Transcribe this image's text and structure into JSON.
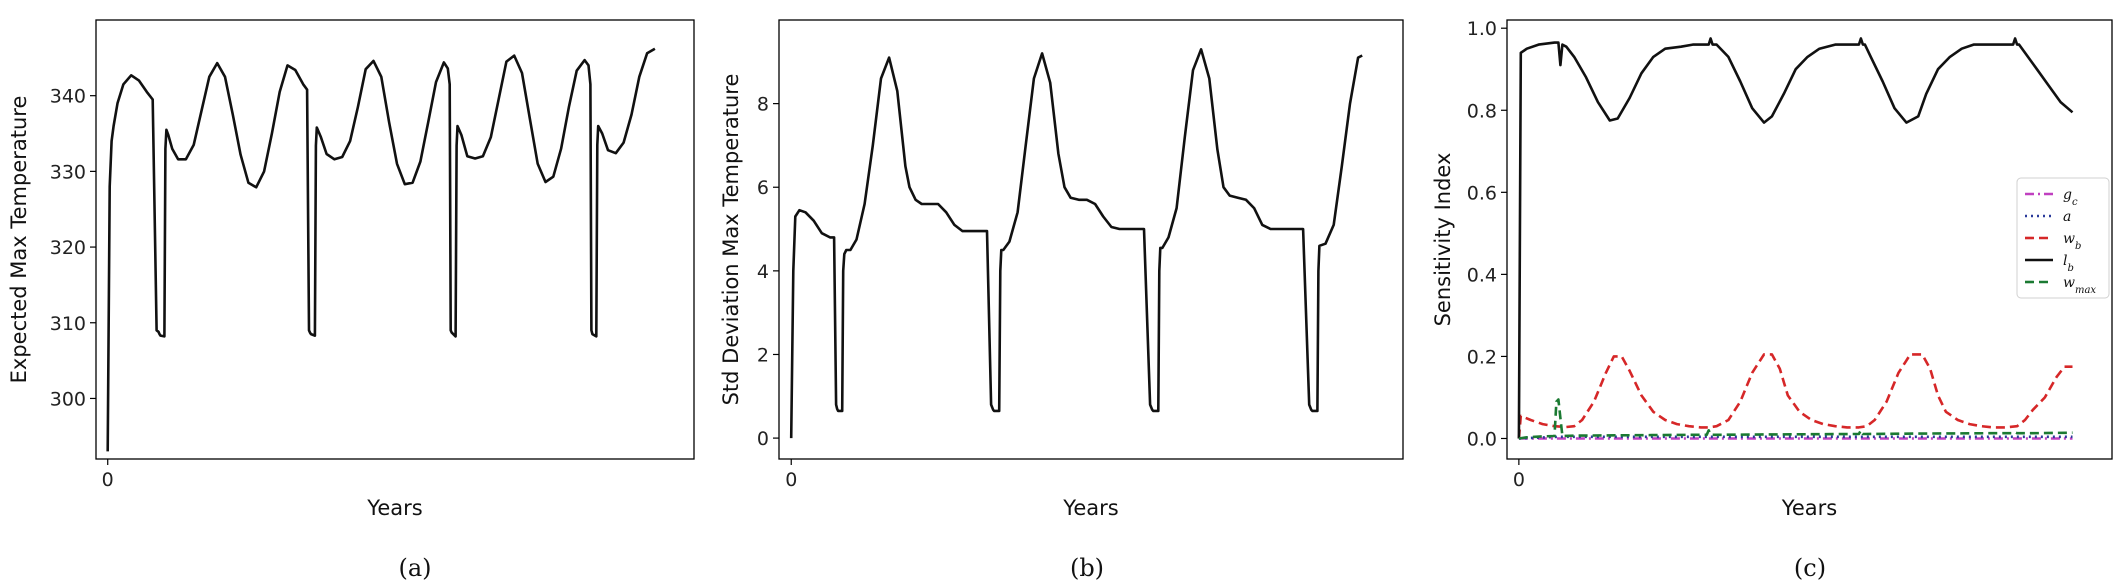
{
  "chart_data": [
    {
      "type": "line",
      "caption": "(a)",
      "xlabel": "Years",
      "ylabel": "Expected Max Temperature",
      "xlim": [
        -6,
        300
      ],
      "ylim": [
        292,
        350
      ],
      "xticks": [
        0
      ],
      "yticks": [
        300,
        310,
        320,
        330,
        340
      ],
      "grid": false,
      "series": [
        {
          "color": "#111111",
          "style": "solid",
          "x": [
            0,
            1,
            2,
            3,
            5,
            8,
            12,
            16,
            20,
            23,
            25,
            26,
            26.5,
            27,
            29,
            29.5,
            30,
            31,
            33,
            36,
            40,
            44,
            48,
            52,
            56,
            60,
            64,
            68,
            72,
            76,
            80,
            84,
            88,
            92,
            96,
            100,
            102,
            103,
            103.5,
            104,
            106,
            106.5,
            107,
            109,
            112,
            116,
            120,
            124,
            128,
            132,
            136,
            140,
            144,
            148,
            152,
            156,
            160,
            164,
            168,
            172,
            174,
            175,
            175.5,
            176,
            178,
            178.5,
            179,
            181,
            184,
            188,
            192,
            196,
            200,
            204,
            208,
            212,
            216,
            220,
            224,
            228,
            232,
            236,
            240,
            244,
            246,
            247,
            247.5,
            248,
            250,
            250.5,
            251,
            253,
            256,
            260,
            264,
            268,
            272,
            276,
            280
          ],
          "y": [
            293,
            328,
            334,
            336,
            339,
            341.5,
            342.7,
            342,
            340.5,
            339.5,
            309,
            308.8,
            308.5,
            308.3,
            308.2,
            333,
            335.5,
            334.8,
            333,
            331.6,
            331.6,
            333.5,
            338,
            342.5,
            344.3,
            342.5,
            337.5,
            332.2,
            328.5,
            327.9,
            330,
            335,
            340.5,
            344.0,
            343.4,
            341.5,
            340.8,
            309.0,
            308.7,
            308.5,
            308.3,
            333.4,
            335.8,
            334.6,
            332.3,
            331.6,
            331.9,
            334.0,
            338.5,
            343.5,
            344.6,
            342.5,
            336.5,
            331.0,
            328.3,
            328.5,
            331.3,
            336.5,
            341.8,
            344.4,
            343.6,
            341.5,
            309.0,
            308.7,
            308.2,
            333.4,
            336.0,
            334.8,
            332.0,
            331.7,
            332.0,
            334.5,
            339.5,
            344.5,
            345.3,
            343.0,
            337.0,
            331.0,
            328.6,
            329.3,
            333.0,
            338.5,
            343.3,
            344.7,
            344.0,
            341.5,
            309.0,
            308.5,
            308.2,
            333.5,
            336.0,
            335.0,
            332.8,
            332.4,
            333.8,
            337.5,
            342.5,
            345.6,
            346.2
          ]
        }
      ]
    },
    {
      "type": "line",
      "caption": "(b)",
      "xlabel": "Years",
      "ylabel": "Std Deviation Max Temperature",
      "xlim": [
        -6,
        300
      ],
      "ylim": [
        -0.5,
        10
      ],
      "xticks": [
        0
      ],
      "yticks": [
        0,
        2,
        4,
        6,
        8
      ],
      "grid": false,
      "series": [
        {
          "color": "#111111",
          "style": "solid",
          "x": [
            0,
            1,
            2,
            4,
            7,
            11,
            15,
            19,
            21,
            22,
            22.5,
            23,
            25,
            25.5,
            26,
            27,
            29,
            32,
            36,
            40,
            44,
            48,
            52,
            56,
            58,
            61,
            64,
            68,
            72,
            76,
            80,
            84,
            88,
            92,
            96,
            98,
            99,
            99.5,
            100,
            102,
            102.5,
            103,
            104,
            107,
            111,
            115,
            119,
            123,
            127,
            131,
            134,
            137,
            141,
            145,
            149,
            153,
            157,
            161,
            165,
            173,
            176,
            177,
            177.5,
            178,
            180,
            180.5,
            181,
            182,
            185,
            189,
            193,
            197,
            201,
            205,
            209,
            212,
            215,
            219,
            223,
            227,
            231,
            235,
            239,
            243,
            251,
            254,
            255,
            255.5,
            256,
            258,
            258.5,
            259,
            262,
            266,
            270,
            274,
            278,
            280
          ],
          "y": [
            0,
            4.0,
            5.3,
            5.45,
            5.4,
            5.2,
            4.9,
            4.8,
            4.8,
            0.8,
            0.7,
            0.65,
            0.65,
            4.0,
            4.4,
            4.5,
            4.5,
            4.75,
            5.6,
            7.0,
            8.6,
            9.1,
            8.3,
            6.5,
            6.0,
            5.7,
            5.6,
            5.6,
            5.6,
            5.4,
            5.1,
            4.95,
            4.95,
            4.95,
            4.95,
            0.8,
            0.68,
            0.65,
            0.65,
            0.65,
            4.0,
            4.5,
            4.5,
            4.7,
            5.4,
            7.0,
            8.6,
            9.2,
            8.5,
            6.8,
            6.0,
            5.75,
            5.7,
            5.7,
            5.6,
            5.3,
            5.05,
            5.0,
            5.0,
            5.0,
            0.8,
            0.68,
            0.65,
            0.65,
            0.65,
            4.0,
            4.55,
            4.55,
            4.8,
            5.5,
            7.2,
            8.8,
            9.3,
            8.6,
            6.9,
            6.0,
            5.8,
            5.75,
            5.7,
            5.5,
            5.1,
            5.0,
            5.0,
            5.0,
            5.0,
            0.8,
            0.68,
            0.65,
            0.65,
            0.65,
            4.0,
            4.6,
            4.65,
            5.1,
            6.5,
            8.0,
            9.1,
            9.15
          ]
        }
      ]
    },
    {
      "type": "line",
      "caption": "(c)",
      "xlabel": "Years",
      "ylabel": "Sensitivity Index",
      "xlim": [
        -6,
        300
      ],
      "ylim": [
        -0.05,
        1.02
      ],
      "xticks": [
        0
      ],
      "yticks": [
        0.0,
        0.2,
        0.4,
        0.6,
        0.8,
        1.0
      ],
      "grid": false,
      "legend": {
        "placement": "center-right",
        "entries": [
          {
            "label": "g_c",
            "color": "#c040c0",
            "style": "dashdot"
          },
          {
            "label": "a",
            "color": "#2a3a9a",
            "style": "dotted"
          },
          {
            "label": "w_b",
            "color": "#d62728",
            "style": "dashed"
          },
          {
            "label": "l_b",
            "color": "#111111",
            "style": "solid"
          },
          {
            "label": "w_max",
            "color": "#1b7a32",
            "style": "dashed"
          }
        ]
      },
      "series": [
        {
          "name": "g_c",
          "color": "#c040c0",
          "style": "dashdot",
          "x": [
            0,
            280
          ],
          "y": [
            0.0,
            0.0
          ]
        },
        {
          "name": "a",
          "color": "#2a3a9a",
          "style": "dotted",
          "x": [
            0,
            20,
            60,
            120,
            200,
            280
          ],
          "y": [
            0.0,
            0.004,
            0.004,
            0.004,
            0.004,
            0.004
          ]
        },
        {
          "name": "w_b",
          "color": "#d62728",
          "style": "dashed",
          "x": [
            0,
            1,
            6,
            12,
            18,
            24,
            28,
            32,
            38,
            44,
            48,
            52,
            56,
            62,
            68,
            74,
            80,
            86,
            92,
            96,
            100,
            106,
            112,
            118,
            124,
            128,
            132,
            136,
            142,
            148,
            154,
            160,
            166,
            172,
            176,
            180,
            186,
            192,
            198,
            204,
            208,
            212,
            216,
            222,
            228,
            234,
            240,
            246,
            252,
            256,
            260,
            266,
            272,
            276,
            280
          ],
          "y": [
            0.0,
            0.055,
            0.045,
            0.035,
            0.03,
            0.028,
            0.03,
            0.045,
            0.09,
            0.16,
            0.2,
            0.2,
            0.165,
            0.105,
            0.065,
            0.045,
            0.035,
            0.03,
            0.027,
            0.027,
            0.03,
            0.045,
            0.09,
            0.16,
            0.205,
            0.205,
            0.17,
            0.105,
            0.065,
            0.045,
            0.035,
            0.03,
            0.027,
            0.027,
            0.03,
            0.045,
            0.09,
            0.16,
            0.205,
            0.205,
            0.17,
            0.105,
            0.065,
            0.045,
            0.035,
            0.03,
            0.027,
            0.027,
            0.03,
            0.045,
            0.07,
            0.1,
            0.15,
            0.175,
            0.175
          ]
        },
        {
          "name": "l_b",
          "color": "#111111",
          "style": "solid",
          "x": [
            0,
            1,
            4,
            10,
            18,
            20,
            21,
            22,
            24,
            28,
            34,
            40,
            46,
            50,
            56,
            62,
            68,
            74,
            82,
            88,
            94,
            96,
            97,
            98,
            100,
            106,
            112,
            118,
            124,
            128,
            134,
            140,
            146,
            152,
            160,
            166,
            172,
            173,
            174,
            175,
            178,
            184,
            190,
            196,
            202,
            206,
            212,
            218,
            224,
            230,
            238,
            244,
            250,
            251,
            252,
            253,
            256,
            262,
            268,
            274,
            280
          ],
          "y": [
            0.0,
            0.94,
            0.95,
            0.96,
            0.965,
            0.965,
            0.91,
            0.96,
            0.955,
            0.93,
            0.88,
            0.82,
            0.775,
            0.78,
            0.83,
            0.89,
            0.93,
            0.95,
            0.955,
            0.96,
            0.96,
            0.96,
            0.975,
            0.96,
            0.96,
            0.93,
            0.87,
            0.805,
            0.77,
            0.785,
            0.84,
            0.9,
            0.93,
            0.95,
            0.96,
            0.96,
            0.96,
            0.975,
            0.96,
            0.96,
            0.93,
            0.87,
            0.805,
            0.77,
            0.785,
            0.84,
            0.9,
            0.93,
            0.95,
            0.96,
            0.96,
            0.96,
            0.96,
            0.975,
            0.96,
            0.96,
            0.94,
            0.9,
            0.86,
            0.82,
            0.795
          ]
        },
        {
          "name": "w_max",
          "color": "#1b7a32",
          "style": "dashed",
          "x": [
            0,
            4,
            12,
            18,
            19,
            20,
            21,
            22,
            30,
            60,
            90,
            95,
            96,
            97,
            100,
            130,
            170,
            172,
            173,
            174,
            200,
            240,
            250,
            251,
            252,
            260,
            280
          ],
          "y": [
            0.0,
            0.003,
            0.005,
            0.006,
            0.09,
            0.095,
            0.05,
            0.006,
            0.007,
            0.008,
            0.009,
            0.009,
            0.02,
            0.009,
            0.009,
            0.01,
            0.011,
            0.011,
            0.02,
            0.011,
            0.012,
            0.013,
            0.013,
            0.015,
            0.013,
            0.013,
            0.014
          ]
        }
      ]
    }
  ]
}
